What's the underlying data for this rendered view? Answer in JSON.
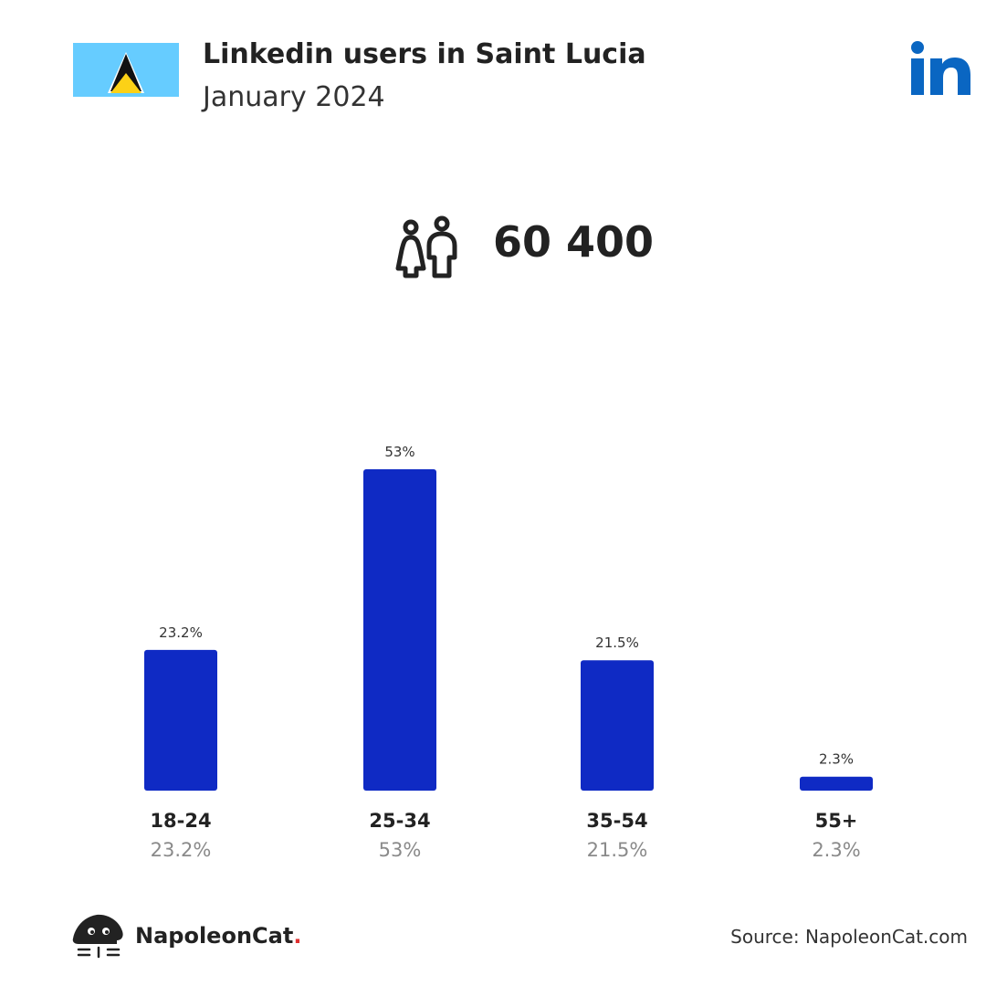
{
  "header": {
    "title": "Linkedin users in Saint Lucia",
    "subtitle": "January 2024"
  },
  "summary": {
    "total_users": "60 400"
  },
  "icons": {
    "flag": "saint-lucia-flag-icon",
    "brand": "linkedin-logo-icon",
    "users": "users-icon",
    "footer_brand": "napoleoncat-logo-icon"
  },
  "colors": {
    "bar": "#0f2ac4",
    "linkedin": "#0a66c2",
    "flag_blue": "#66ccff",
    "flag_yellow": "#fcd116"
  },
  "chart_data": {
    "type": "bar",
    "categories": [
      "18-24",
      "25-34",
      "35-54",
      "55+"
    ],
    "values": [
      23.2,
      53,
      21.5,
      2.3
    ],
    "value_labels": [
      "23.2%",
      "53%",
      "21.5%",
      "2.3%"
    ],
    "ylim": [
      0,
      53
    ],
    "grid": false
  },
  "footer": {
    "brand_name": "NapoleonCat",
    "brand_dot": ".",
    "source": "Source: NapoleonCat.com"
  }
}
